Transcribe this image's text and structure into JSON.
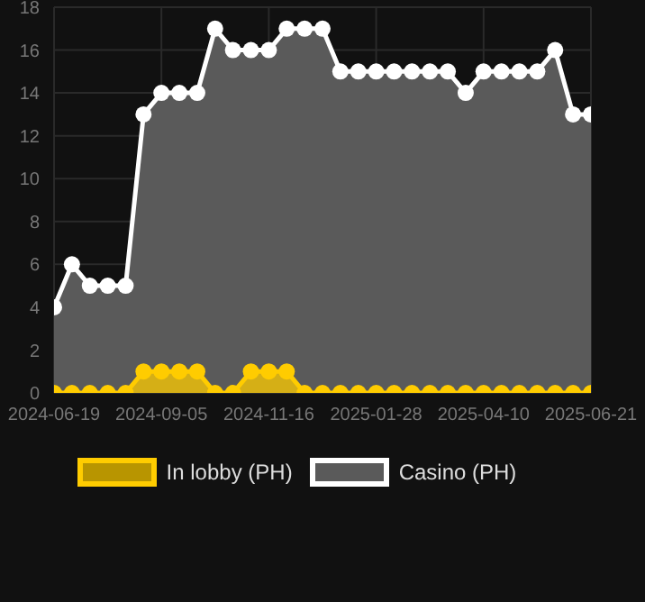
{
  "chart_data": {
    "type": "area",
    "categories": [
      "2024-06-19",
      null,
      null,
      null,
      null,
      null,
      "2024-09-05",
      null,
      null,
      null,
      null,
      null,
      "2024-11-16",
      null,
      null,
      null,
      null,
      null,
      "2025-01-28",
      null,
      null,
      null,
      null,
      null,
      "2025-04-10",
      null,
      null,
      null,
      null,
      null,
      "2025-06-21"
    ],
    "series": [
      {
        "name": "In lobby (PH)",
        "color": "#ffcc00",
        "values": [
          0,
          0,
          0,
          0,
          0,
          1,
          1,
          1,
          1,
          0,
          0,
          1,
          1,
          1,
          0,
          0,
          0,
          0,
          0,
          0,
          0,
          0,
          0,
          0,
          0,
          0,
          0,
          0,
          0,
          0,
          0
        ]
      },
      {
        "name": "Casino (PH)",
        "color": "#ffffff",
        "values": [
          4,
          6,
          5,
          5,
          5,
          13,
          14,
          14,
          14,
          17,
          16,
          16,
          16,
          17,
          17,
          17,
          15,
          15,
          15,
          15,
          15,
          15,
          15,
          14,
          15,
          15,
          15,
          15,
          16,
          13,
          13
        ]
      }
    ],
    "ylim": [
      0,
      18
    ],
    "yticks": [
      0,
      2,
      4,
      6,
      8,
      10,
      12,
      14,
      16,
      18
    ],
    "grid": true,
    "legend": "bottom",
    "marker": "circle"
  }
}
